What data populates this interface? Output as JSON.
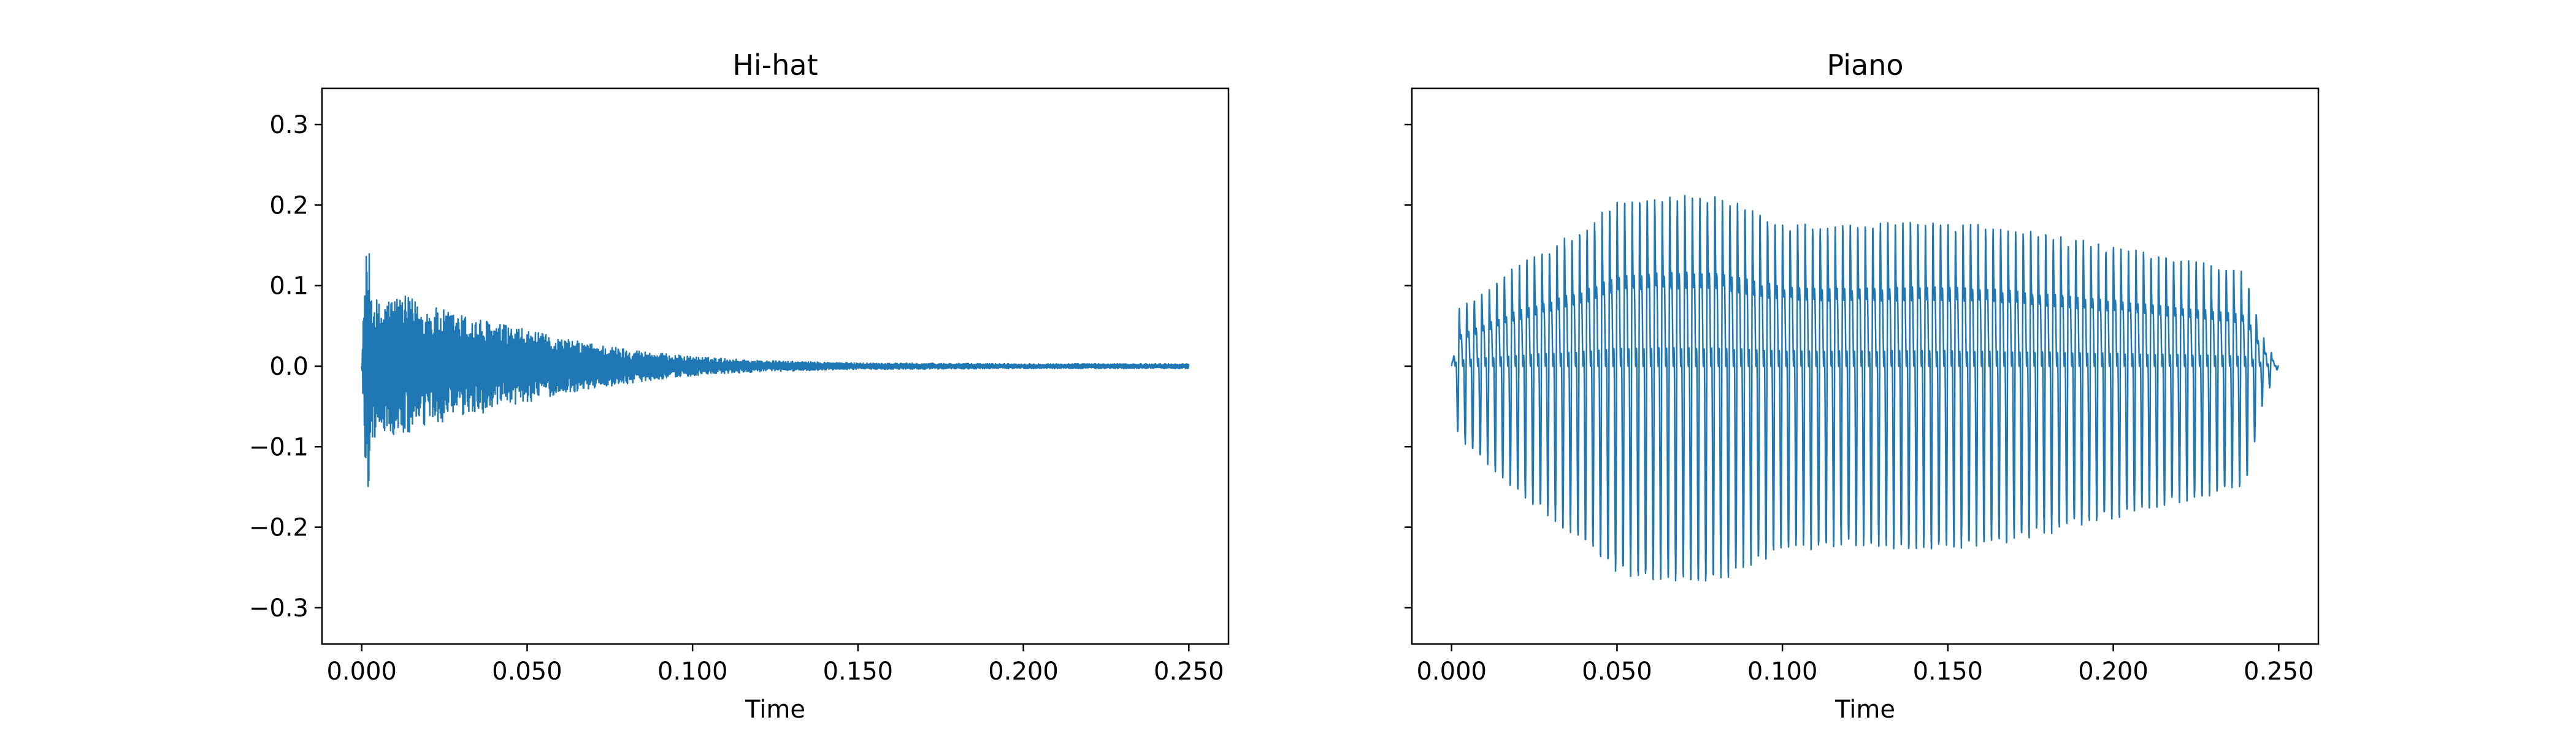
{
  "chart_data": [
    {
      "type": "line",
      "title": "Hi-hat",
      "xlabel": "Time",
      "ylabel": "",
      "xlim": [
        -0.012,
        0.262
      ],
      "ylim": [
        -0.345,
        0.345
      ],
      "x_ticks": [
        0.0,
        0.05,
        0.1,
        0.15,
        0.2,
        0.25
      ],
      "x_tick_labels": [
        "0.000",
        "0.050",
        "0.100",
        "0.150",
        "0.200",
        "0.250"
      ],
      "y_ticks": [
        -0.3,
        -0.2,
        -0.1,
        0.0,
        0.1,
        0.2,
        0.3
      ],
      "y_tick_labels": [
        "−0.3",
        "−0.2",
        "−0.1",
        "0.0",
        "0.1",
        "0.2",
        "0.3"
      ],
      "grid": false,
      "color": "#1f77b4",
      "envelope": {
        "t": [
          0.0,
          0.001,
          0.002,
          0.003,
          0.005,
          0.01,
          0.015,
          0.02,
          0.03,
          0.04,
          0.05,
          0.06,
          0.07,
          0.08,
          0.09,
          0.1,
          0.12,
          0.15,
          0.2,
          0.25
        ],
        "amp": [
          0.0,
          0.13,
          0.155,
          0.1,
          0.08,
          0.09,
          0.085,
          0.075,
          0.065,
          0.055,
          0.045,
          0.035,
          0.028,
          0.022,
          0.016,
          0.012,
          0.007,
          0.004,
          0.003,
          0.003
        ]
      }
    },
    {
      "type": "line",
      "title": "Piano",
      "xlabel": "Time",
      "ylabel": "",
      "xlim": [
        -0.012,
        0.262
      ],
      "ylim": [
        -0.345,
        0.345
      ],
      "x_ticks": [
        0.0,
        0.05,
        0.1,
        0.15,
        0.2,
        0.25
      ],
      "x_tick_labels": [
        "0.000",
        "0.050",
        "0.100",
        "0.150",
        "0.200",
        "0.250"
      ],
      "y_ticks": [
        -0.3,
        -0.2,
        -0.1,
        0.0,
        0.1,
        0.2,
        0.3
      ],
      "y_tick_labels": [],
      "grid": false,
      "color": "#1f77b4",
      "fundamental_hz": 440,
      "envelope": {
        "t": [
          0.0,
          0.002,
          0.01,
          0.02,
          0.03,
          0.04,
          0.05,
          0.06,
          0.08,
          0.1,
          0.12,
          0.14,
          0.16,
          0.18,
          0.2,
          0.22,
          0.24,
          0.245,
          0.25
        ],
        "amp": [
          0.0,
          0.09,
          0.12,
          0.16,
          0.19,
          0.22,
          0.26,
          0.27,
          0.27,
          0.23,
          0.225,
          0.23,
          0.225,
          0.21,
          0.19,
          0.17,
          0.15,
          0.05,
          0.0
        ]
      }
    }
  ]
}
